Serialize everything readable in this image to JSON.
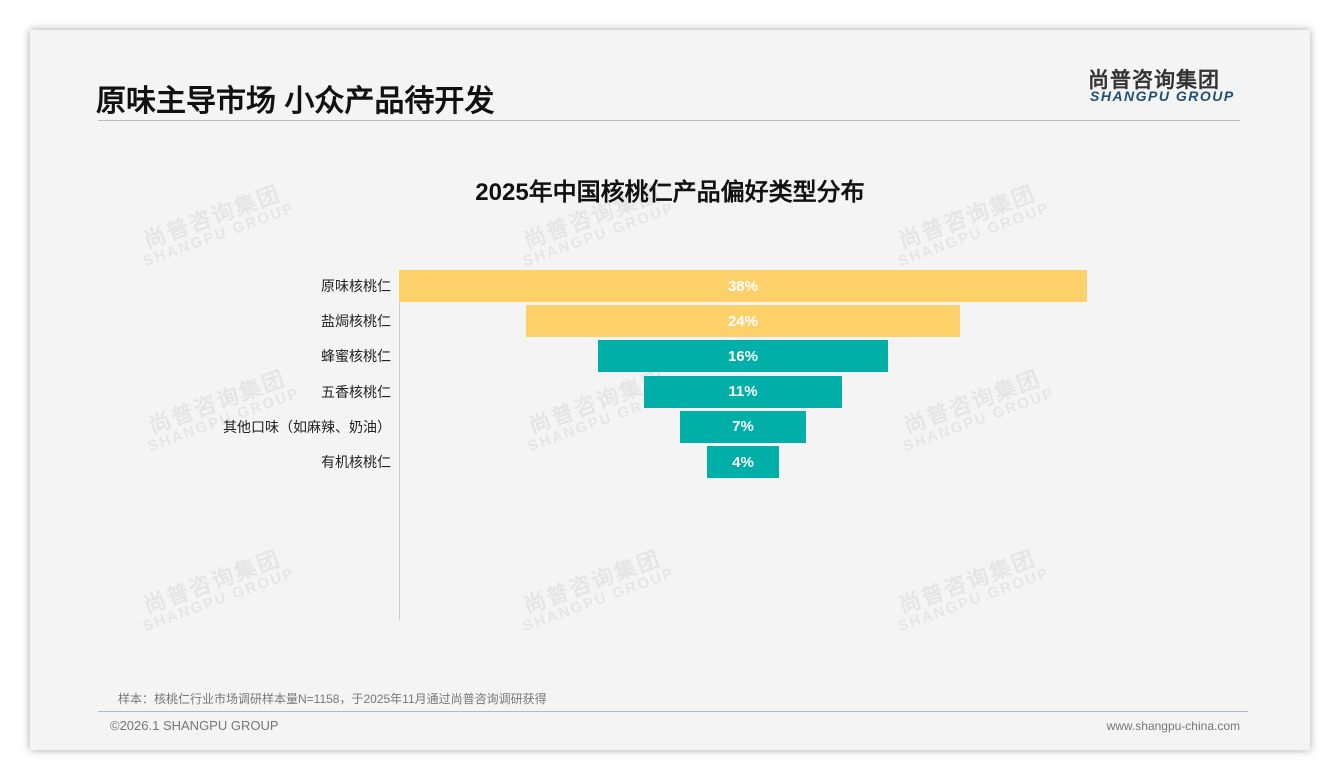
{
  "header": {
    "title": "原味主导市场 小众产品待开发",
    "logo_cn": "尚普咨询集团",
    "logo_en": "SHANGPU GROUP"
  },
  "watermark": {
    "cn": "尚普咨询集团",
    "en": "SHANGPU GROUP"
  },
  "chart_data": {
    "type": "bar",
    "subtype": "funnel",
    "title": "2025年中国核桃仁产品偏好类型分布",
    "categories": [
      "原味核桃仁",
      "盐焗核桃仁",
      "蜂蜜核桃仁",
      "五香核桃仁",
      "其他口味（如麻辣、奶油）",
      "有机核桃仁"
    ],
    "values": [
      38,
      24,
      16,
      11,
      7,
      4
    ],
    "labels": [
      "38%",
      "24%",
      "16%",
      "11%",
      "7%",
      "4%"
    ],
    "colors": [
      "#fdd06a",
      "#fdd06a",
      "#00b0a8",
      "#00b0a8",
      "#00b0a8",
      "#00b0a8"
    ],
    "unit": "%"
  },
  "footer": {
    "note": "样本：核桃仁行业市场调研样本量N=1158，于2025年11月通过尚普咨询调研获得",
    "copyright": "©2026.1 SHANGPU GROUP",
    "url": "www.shangpu-china.com"
  }
}
